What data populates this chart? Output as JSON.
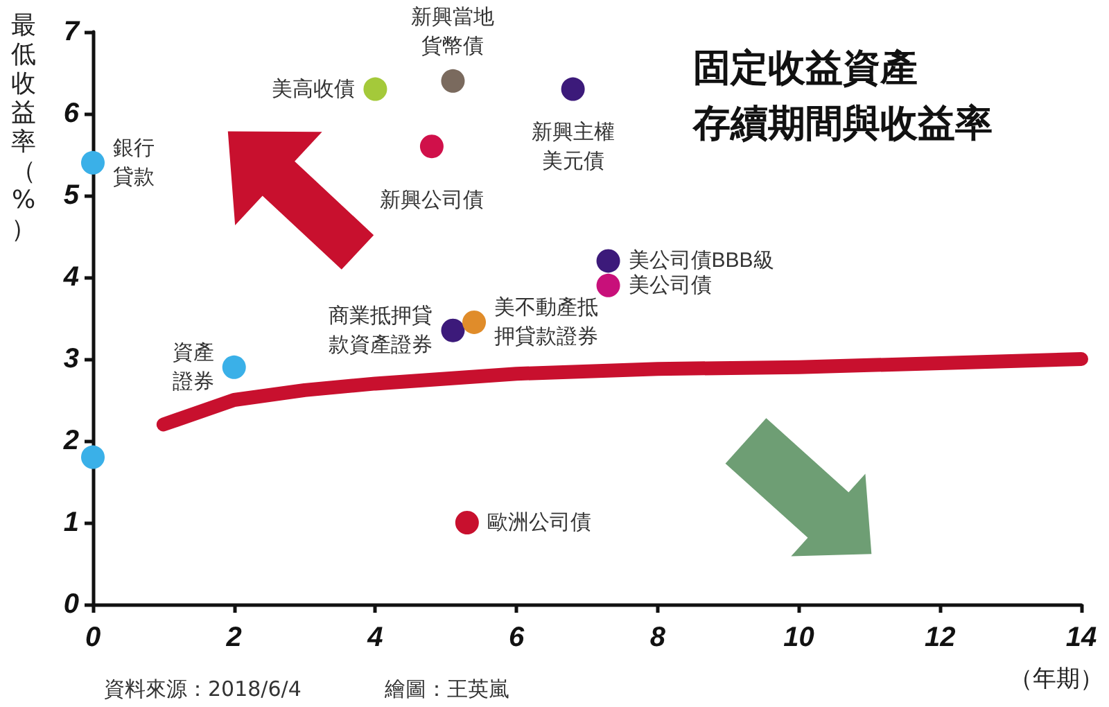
{
  "chart_data": {
    "type": "scatter",
    "title": "固定收益資產存續期間與收益率",
    "xlabel": "（年期）",
    "ylabel": "最低收益率（%）",
    "annotations": [
      "資料來源：2018/6/4",
      "繪圖：王英嵐"
    ],
    "xlim": [
      0,
      14
    ],
    "xticks": [
      0,
      2,
      4,
      6,
      8,
      10,
      12,
      14
    ],
    "ylim": [
      0,
      7
    ],
    "yticks": [
      0,
      1,
      2,
      3,
      4,
      5,
      6,
      7
    ],
    "grid": false,
    "legend": false,
    "marker": "circle",
    "series": [
      {
        "type": "line",
        "marker": "none",
        "color": "#c8102e",
        "x": [
          1,
          2,
          3,
          4,
          6,
          8,
          10,
          12,
          14
        ],
        "values": [
          2.2,
          2.5,
          2.62,
          2.7,
          2.82,
          2.88,
          2.9,
          2.95,
          3.0
        ]
      },
      {
        "name": "銀行貸款",
        "color": "#3ab0e8",
        "x": [
          0
        ],
        "values": [
          5.4
        ]
      },
      {
        "color": "#3ab0e8",
        "x": [
          0
        ],
        "values": [
          1.8
        ]
      },
      {
        "name": "資產證券",
        "color": "#3ab0e8",
        "x": [
          2
        ],
        "values": [
          2.9
        ]
      },
      {
        "name": "美高收債",
        "color": "#a4c93a",
        "x": [
          4
        ],
        "values": [
          6.3
        ]
      },
      {
        "name": "新興當地貨幣債",
        "color": "#7a6a5e",
        "x": [
          5.1
        ],
        "values": [
          6.4
        ]
      },
      {
        "name": "新興公司債",
        "color": "#d0104a",
        "x": [
          4.8
        ],
        "values": [
          5.6
        ]
      },
      {
        "name": "新興主權美元債",
        "color": "#3c1a7a",
        "x": [
          6.8
        ],
        "values": [
          6.3
        ]
      },
      {
        "name": "美公司債BBB級",
        "color": "#3c1a7a",
        "x": [
          7.3
        ],
        "values": [
          4.2
        ]
      },
      {
        "name": "美公司債",
        "color": "#c8107a",
        "x": [
          7.3
        ],
        "values": [
          3.9
        ]
      },
      {
        "name": "商業抵押貸款資產證券",
        "color": "#3c1a7a",
        "x": [
          5.1
        ],
        "values": [
          3.35
        ]
      },
      {
        "name": "美不動產抵押貸款證券",
        "color": "#e08c2a",
        "x": [
          5.4
        ],
        "values": [
          3.45
        ]
      },
      {
        "name": "歐洲公司債",
        "color": "#c8102e",
        "x": [
          5.3
        ],
        "values": [
          1.0
        ]
      }
    ]
  }
}
